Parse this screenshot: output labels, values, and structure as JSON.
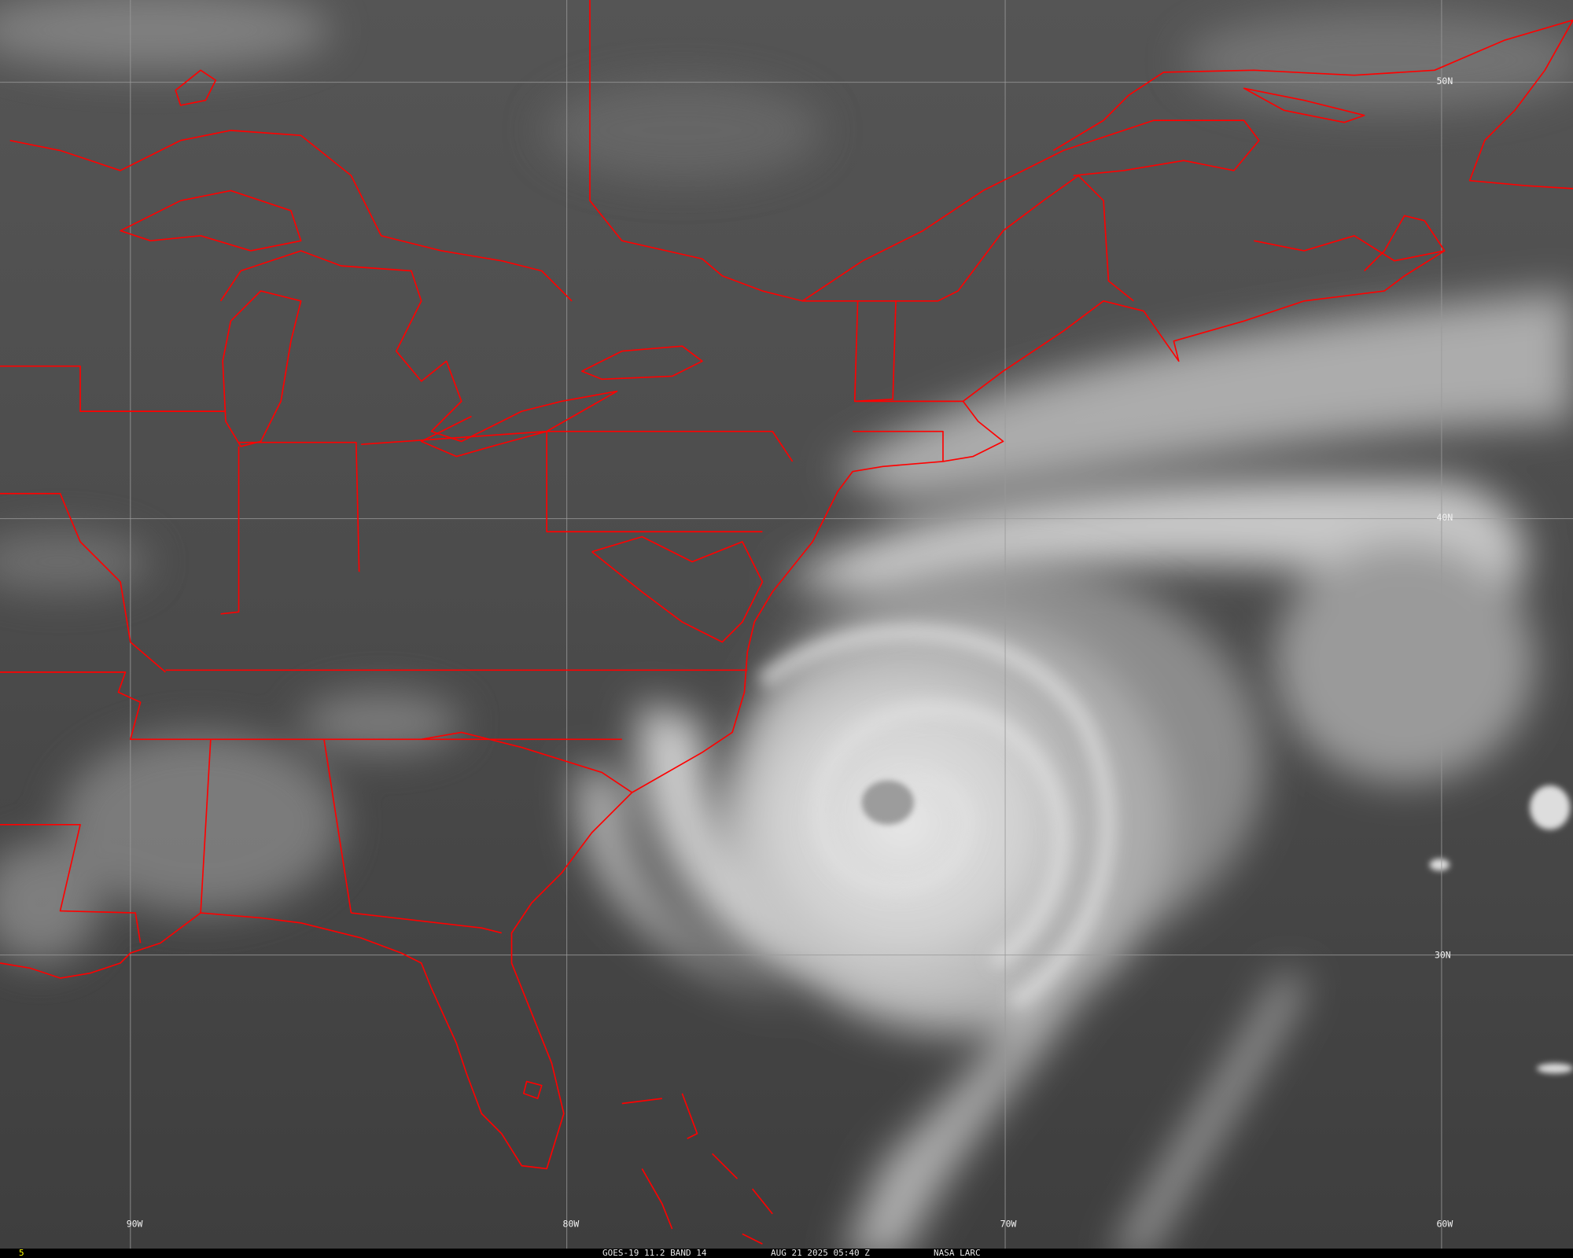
{
  "image": {
    "type": "satellite-infrared",
    "colors": {
      "border_lines": "#ff0000",
      "grid_lines": "#9a9a9a",
      "frame_number": "#ffff00",
      "footer_background": "#000000"
    }
  },
  "grid_labels": {
    "longitude": [
      "90W",
      "80W",
      "70W",
      "60W"
    ],
    "latitude": [
      "50N",
      "40N",
      "30N"
    ]
  },
  "footer": {
    "frame_number": "5",
    "satellite_band": "GOES-19 11.2 BAND 14",
    "datetime": "AUG 21 2025 05:40 Z",
    "source": "NASA LARC"
  }
}
